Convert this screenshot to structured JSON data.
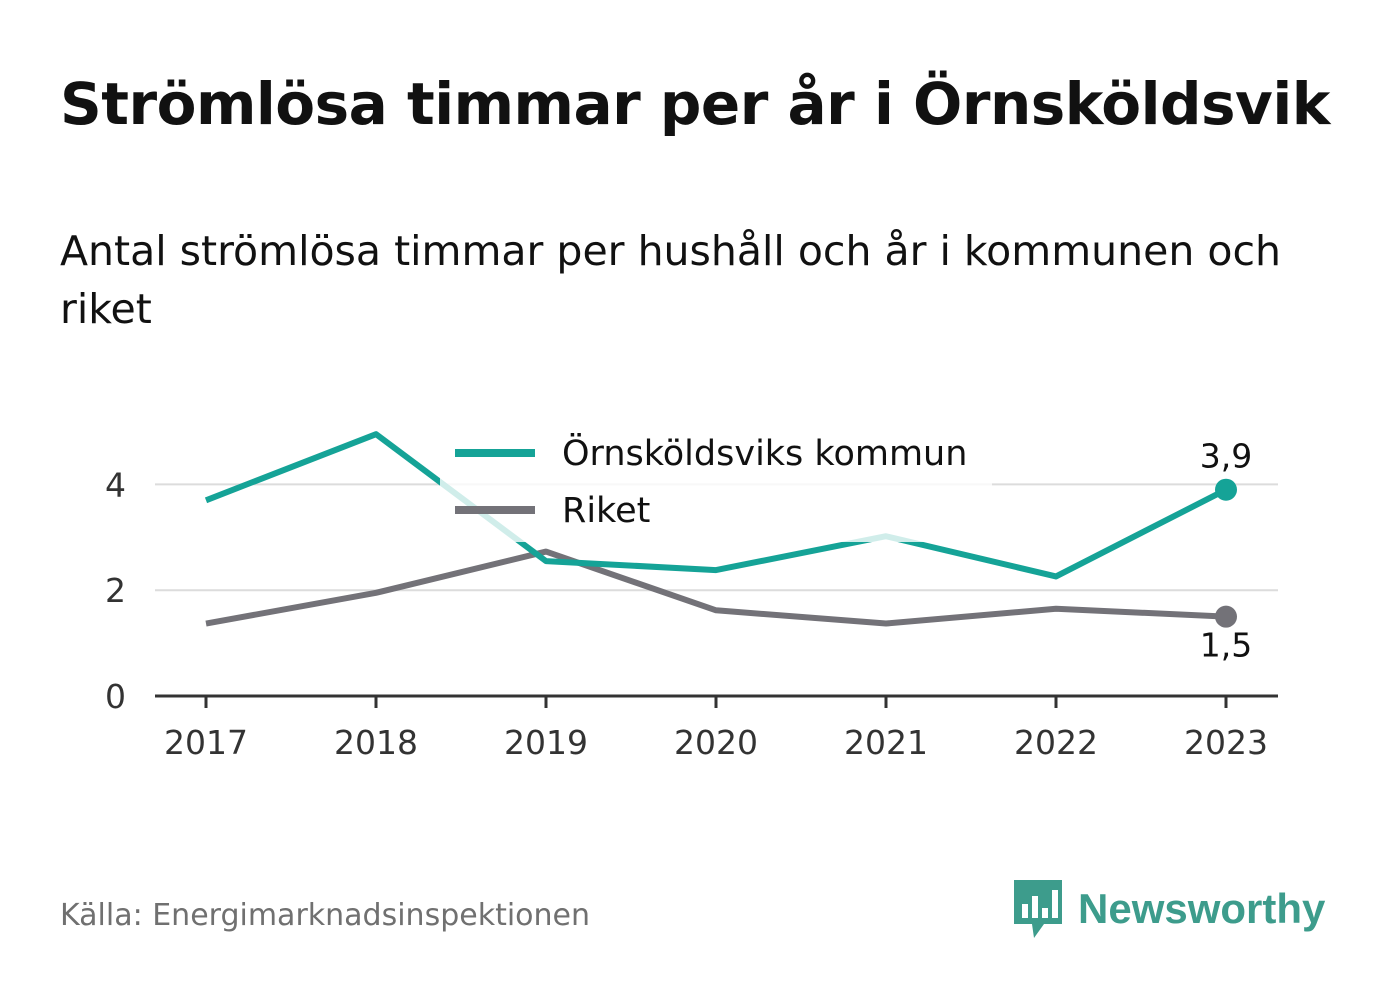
{
  "header": {
    "title": "Strömlösa timmar per år i Örnsköldsvik",
    "subtitle": "Antal strömlösa timmar per hushåll och år i kommunen och riket"
  },
  "chart_data": {
    "type": "line",
    "x": [
      "2017",
      "2018",
      "2019",
      "2020",
      "2021",
      "2022",
      "2023"
    ],
    "ylim": [
      0,
      5
    ],
    "yticks": [
      "0",
      "2",
      "4"
    ],
    "ytick_values": [
      0,
      2,
      4
    ],
    "grid": true,
    "legend_position": "top-center",
    "series": [
      {
        "name": "Örnsköldsviks kommun",
        "color": "#15a397",
        "values": [
          3.7,
          4.95,
          2.55,
          2.38,
          3.02,
          2.26,
          3.9
        ],
        "end_label": "3,9"
      },
      {
        "name": "Riket",
        "color": "#737278",
        "values": [
          1.37,
          1.95,
          2.73,
          1.62,
          1.37,
          1.65,
          1.5
        ],
        "end_label": "1,5"
      }
    ]
  },
  "footer": {
    "source": "Källa: Energimarknadsinspektionen",
    "brand": "Newsworthy",
    "brand_color": "#3d9c8c",
    "logo_icon": "newsworthy-chart-bubble-icon"
  }
}
